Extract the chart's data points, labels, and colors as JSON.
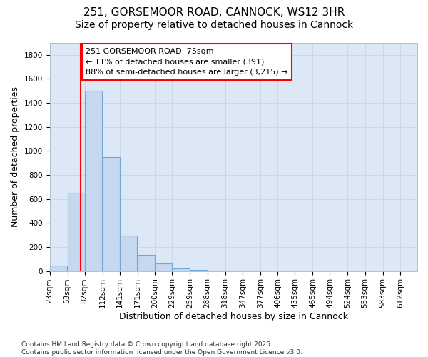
{
  "title1": "251, GORSEMOOR ROAD, CANNOCK, WS12 3HR",
  "title2": "Size of property relative to detached houses in Cannock",
  "xlabel": "Distribution of detached houses by size in Cannock",
  "ylabel": "Number of detached properties",
  "bar_left_edges": [
    23,
    53,
    82,
    112,
    141,
    171,
    200,
    229,
    259,
    288,
    318,
    347,
    377,
    406,
    435,
    465,
    494,
    524,
    553,
    583
  ],
  "bar_widths": [
    29,
    29,
    29,
    29,
    29,
    29,
    29,
    29,
    29,
    29,
    29,
    29,
    29,
    29,
    29,
    29,
    29,
    29,
    29,
    29
  ],
  "bar_heights": [
    45,
    650,
    1500,
    950,
    295,
    135,
    65,
    20,
    10,
    5,
    2,
    1,
    0,
    0,
    0,
    0,
    0,
    0,
    0,
    0
  ],
  "bar_color": "#c5d8ef",
  "bar_edge_color": "#6fa8d4",
  "grid_color": "#c8d8e8",
  "bg_color": "#dce8f5",
  "red_line_x": 75,
  "annotation_line1": "251 GORSEMOOR ROAD: 75sqm",
  "annotation_line2": "← 11% of detached houses are smaller (391)",
  "annotation_line3": "88% of semi-detached houses are larger (3,215) →",
  "ylim": [
    0,
    1900
  ],
  "yticks": [
    0,
    200,
    400,
    600,
    800,
    1000,
    1200,
    1400,
    1600,
    1800
  ],
  "tick_labels": [
    "23sqm",
    "53sqm",
    "82sqm",
    "112sqm",
    "141sqm",
    "171sqm",
    "200sqm",
    "229sqm",
    "259sqm",
    "288sqm",
    "318sqm",
    "347sqm",
    "377sqm",
    "406sqm",
    "435sqm",
    "465sqm",
    "494sqm",
    "524sqm",
    "553sqm",
    "583sqm",
    "612sqm"
  ],
  "tick_positions": [
    23,
    53,
    82,
    112,
    141,
    171,
    200,
    229,
    259,
    288,
    318,
    347,
    377,
    406,
    435,
    465,
    494,
    524,
    553,
    583,
    612
  ],
  "footer_text": "Contains HM Land Registry data © Crown copyright and database right 2025.\nContains public sector information licensed under the Open Government Licence v3.0.",
  "title_fontsize": 11,
  "subtitle_fontsize": 10,
  "axis_label_fontsize": 9,
  "tick_fontsize": 7.5,
  "footer_fontsize": 6.5
}
